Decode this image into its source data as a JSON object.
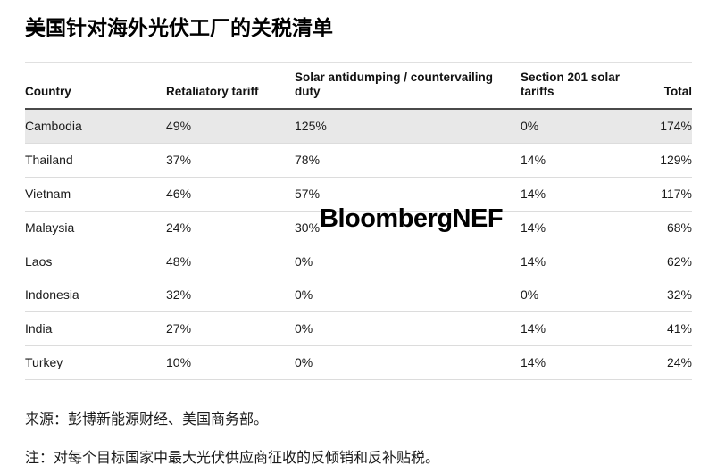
{
  "chart_data": {
    "type": "table",
    "title": "美国针对海外光伏工厂的关税清单",
    "columns": [
      "Country",
      "Retaliatory tariff",
      "Solar antidumping / countervailing duty",
      "Section 201 solar tariffs",
      "Total"
    ],
    "rows": [
      [
        "Cambodia",
        "49%",
        "125%",
        "0%",
        "174%"
      ],
      [
        "Thailand",
        "37%",
        "78%",
        "14%",
        "129%"
      ],
      [
        "Vietnam",
        "46%",
        "57%",
        "14%",
        "117%"
      ],
      [
        "Malaysia",
        "24%",
        "30%",
        "14%",
        "68%"
      ],
      [
        "Laos",
        "48%",
        "0%",
        "14%",
        "62%"
      ],
      [
        "Indonesia",
        "32%",
        "0%",
        "0%",
        "32%"
      ],
      [
        "India",
        "27%",
        "0%",
        "14%",
        "41%"
      ],
      [
        "Turkey",
        "10%",
        "0%",
        "14%",
        "24%"
      ]
    ],
    "watermark": "BloombergNEF",
    "source": "来源：彭博新能源财经、美国商务部。",
    "note": "注：对每个目标国家中最大光伏供应商征收的反倾销和反补贴税。"
  }
}
